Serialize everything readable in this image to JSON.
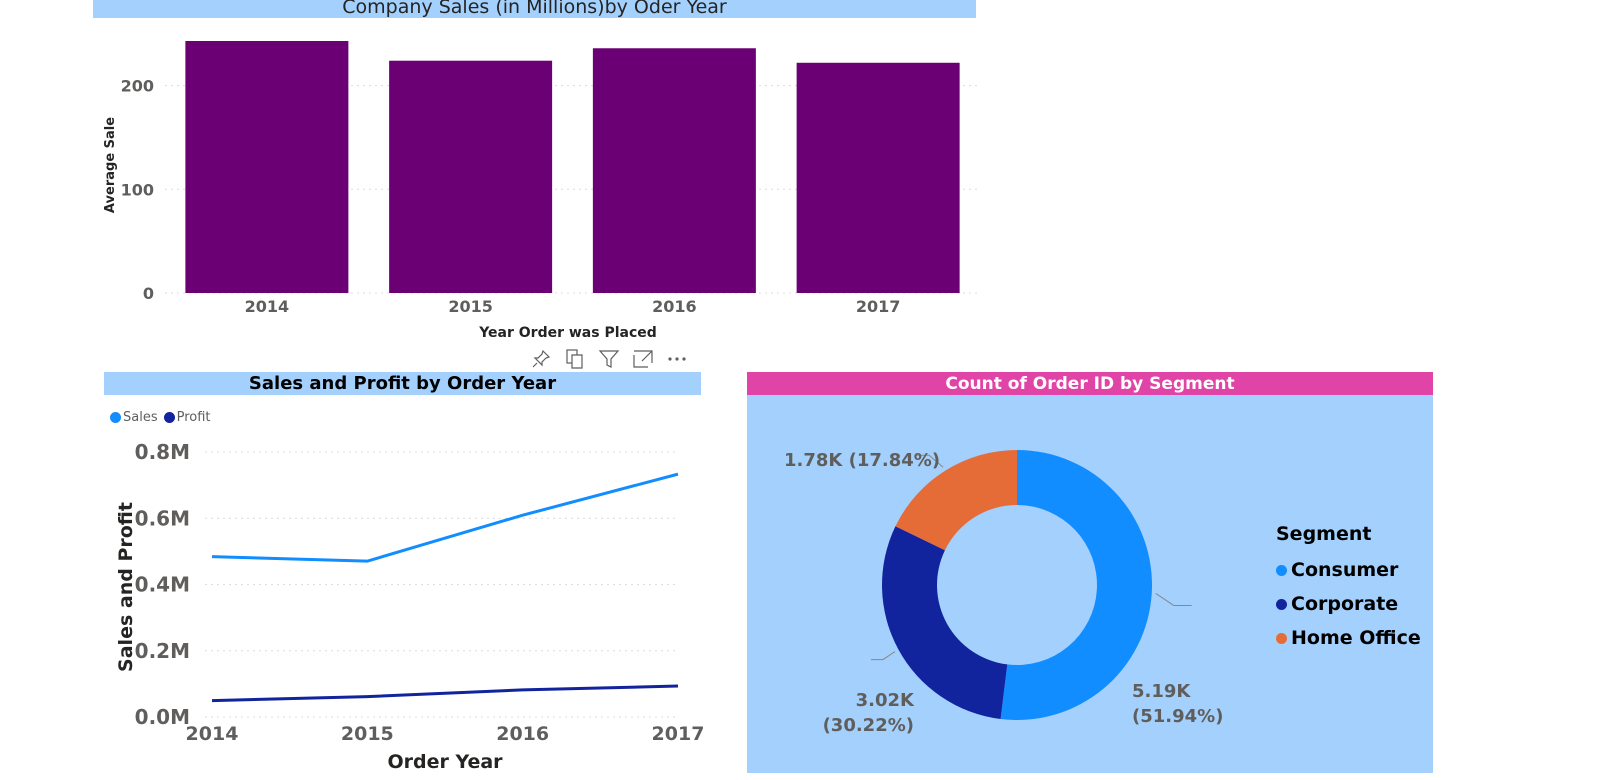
{
  "charts": [
    {
      "title": "Company Sales (in Millions)by Oder Year",
      "type": "bar",
      "xlabel": "Year Order was Placed",
      "ylabel": "Average Sale",
      "color": "#6a0073",
      "ylim": [
        0,
        240
      ],
      "yticks": [
        "0",
        "100",
        "200"
      ]
    },
    {
      "title": "Sales and Profit by Order Year",
      "type": "line",
      "xlabel": "Order Year",
      "ylabel": "Sales and Profit",
      "yticks": [
        "0.0M",
        "0.2M",
        "0.4M",
        "0.6M",
        "0.8M"
      ],
      "legend": [
        {
          "label": "Sales",
          "color": "#118dff"
        },
        {
          "label": "Profit",
          "color": "#12239e"
        }
      ]
    },
    {
      "title": "Count of Order ID by Segment",
      "type": "pie",
      "legend_title": "Segment",
      "legend": [
        {
          "label": "Consumer",
          "color": "#118dff"
        },
        {
          "label": "Corporate",
          "color": "#12239e"
        },
        {
          "label": "Home Office",
          "color": "#e66c37"
        }
      ],
      "labels": [
        {
          "value": "5.19K",
          "pct": "(51.94%)"
        },
        {
          "value": "3.02K",
          "pct": "(30.22%)"
        },
        {
          "value": "1.78K",
          "pct": "(17.84%)"
        }
      ]
    }
  ],
  "toolbar": {
    "icons": [
      "pin-icon",
      "copy-icon",
      "filter-icon",
      "focus-mode-icon",
      "more-options-icon"
    ]
  },
  "chart_data": [
    {
      "type": "bar",
      "title": "Company Sales (in Millions)by Oder Year",
      "xlabel": "Year Order was Placed",
      "ylabel": "Average Sale",
      "categories": [
        "2014",
        "2015",
        "2016",
        "2017"
      ],
      "values": [
        243,
        224,
        236,
        222
      ],
      "ylim": [
        0,
        240
      ],
      "grid": true
    },
    {
      "type": "line",
      "title": "Sales and Profit by Order Year",
      "xlabel": "Order Year",
      "ylabel": "Sales and Profit",
      "categories": [
        "2014",
        "2015",
        "2016",
        "2017"
      ],
      "series": [
        {
          "name": "Sales",
          "values": [
            484247,
            470533,
            609206,
            733215
          ]
        },
        {
          "name": "Profit",
          "values": [
            49544,
            61619,
            81795,
            93439
          ]
        }
      ],
      "ylim": [
        0,
        800000
      ],
      "legend": "top-left",
      "grid": true
    },
    {
      "type": "pie",
      "title": "Count of Order ID by Segment",
      "categories": [
        "Consumer",
        "Corporate",
        "Home Office"
      ],
      "values": [
        5191,
        3020,
        1783
      ],
      "percentages": [
        51.94,
        30.22,
        17.84
      ],
      "legend": "right"
    }
  ]
}
